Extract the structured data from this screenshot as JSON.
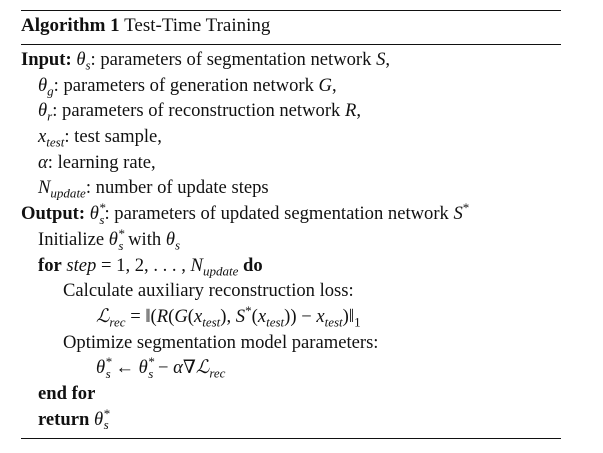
{
  "algorithm": {
    "number_label": "Algorithm 1",
    "title": "Test-Time Training"
  },
  "lines": [
    {
      "keyword": "Input:",
      "text": " θ_s: parameters of segmentation network S,"
    },
    {
      "text": "θ_g: parameters of generation network G,"
    },
    {
      "text": "θ_r: parameters of reconstruction network R,"
    },
    {
      "text": "x_test: test sample,"
    },
    {
      "text": "α: learning rate,"
    },
    {
      "text": "N_update: number of update steps"
    },
    {
      "keyword": "Output:",
      "text": " θ*_s: parameters of updated segmentation network S*"
    },
    {
      "text": "Initialize θ*_s with θ_s"
    },
    {
      "keyword": "for",
      "text": " step = 1, 2, . . . , N_update ",
      "keyword_end": "do"
    },
    {
      "text": "Calculate auxiliary reconstruction loss:"
    },
    {
      "text": "ℒ_rec = ‖(R(G(x_test), S*(x_test)) − x_test)‖_1"
    },
    {
      "text": "Optimize segmentation model parameters:"
    },
    {
      "text": "θ*_s ← θ*_s − α∇ℒ_rec"
    },
    {
      "keyword": "end for",
      "text": ""
    },
    {
      "keyword": "return",
      "text": " θ*_s"
    }
  ]
}
